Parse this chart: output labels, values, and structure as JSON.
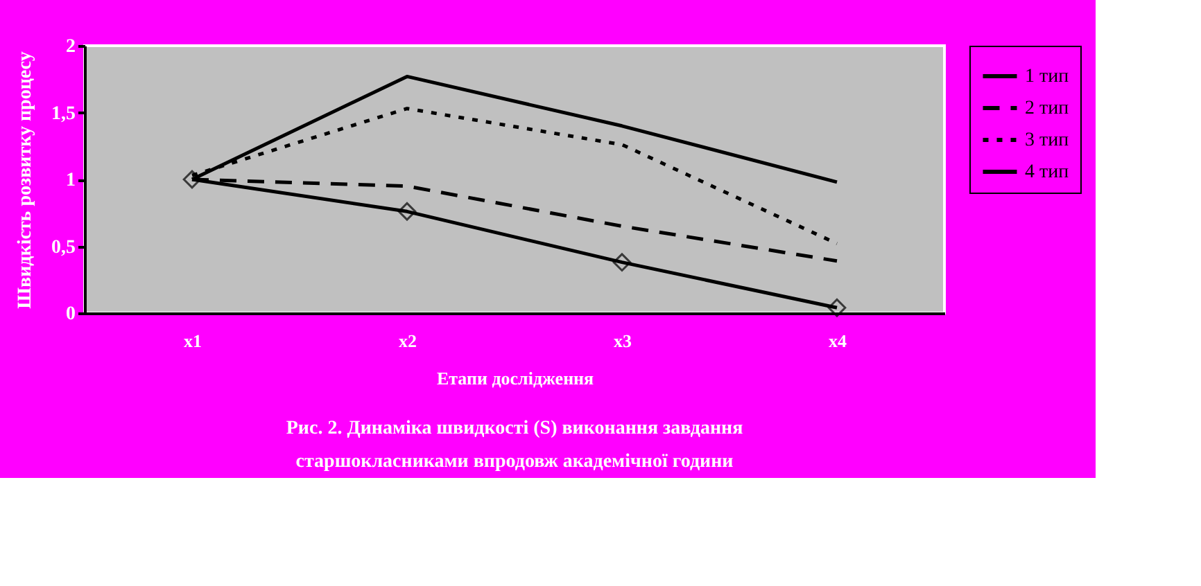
{
  "chart_data": {
    "type": "line",
    "title": "Рис. 2. Динаміка швидкості (S) виконання завдання старшокласниками впродовж академічної години",
    "xlabel": "Етапи дослідження",
    "ylabel": "Швидкість розвитку процесу",
    "categories": [
      "x1",
      "x2",
      "x3",
      "x4"
    ],
    "series": [
      {
        "name": "1 тип",
        "color": "#000000",
        "values": [
          1.0,
          0.76,
          0.38,
          0.04
        ],
        "line_style": "solid",
        "marker": "diamond"
      },
      {
        "name": "2 тип",
        "color": "#000000",
        "values": [
          1.0,
          0.95,
          0.65,
          0.39
        ],
        "line_style": "dashed",
        "marker": "none"
      },
      {
        "name": "3 тип",
        "color": "#000000",
        "values": [
          1.03,
          1.53,
          1.26,
          0.52
        ],
        "line_style": "dotted",
        "marker": "none"
      },
      {
        "name": "4 тип",
        "color": "#000000",
        "values": [
          1.0,
          1.77,
          1.4,
          0.98
        ],
        "line_style": "solid",
        "marker": "none"
      }
    ],
    "ylim": [
      0,
      2
    ],
    "yticks": [
      0,
      {
        "value": 0.5,
        "label": "0,5"
      },
      1,
      {
        "value": 1.5,
        "label": "1,5"
      },
      2
    ],
    "grid": false,
    "legend": "right"
  }
}
